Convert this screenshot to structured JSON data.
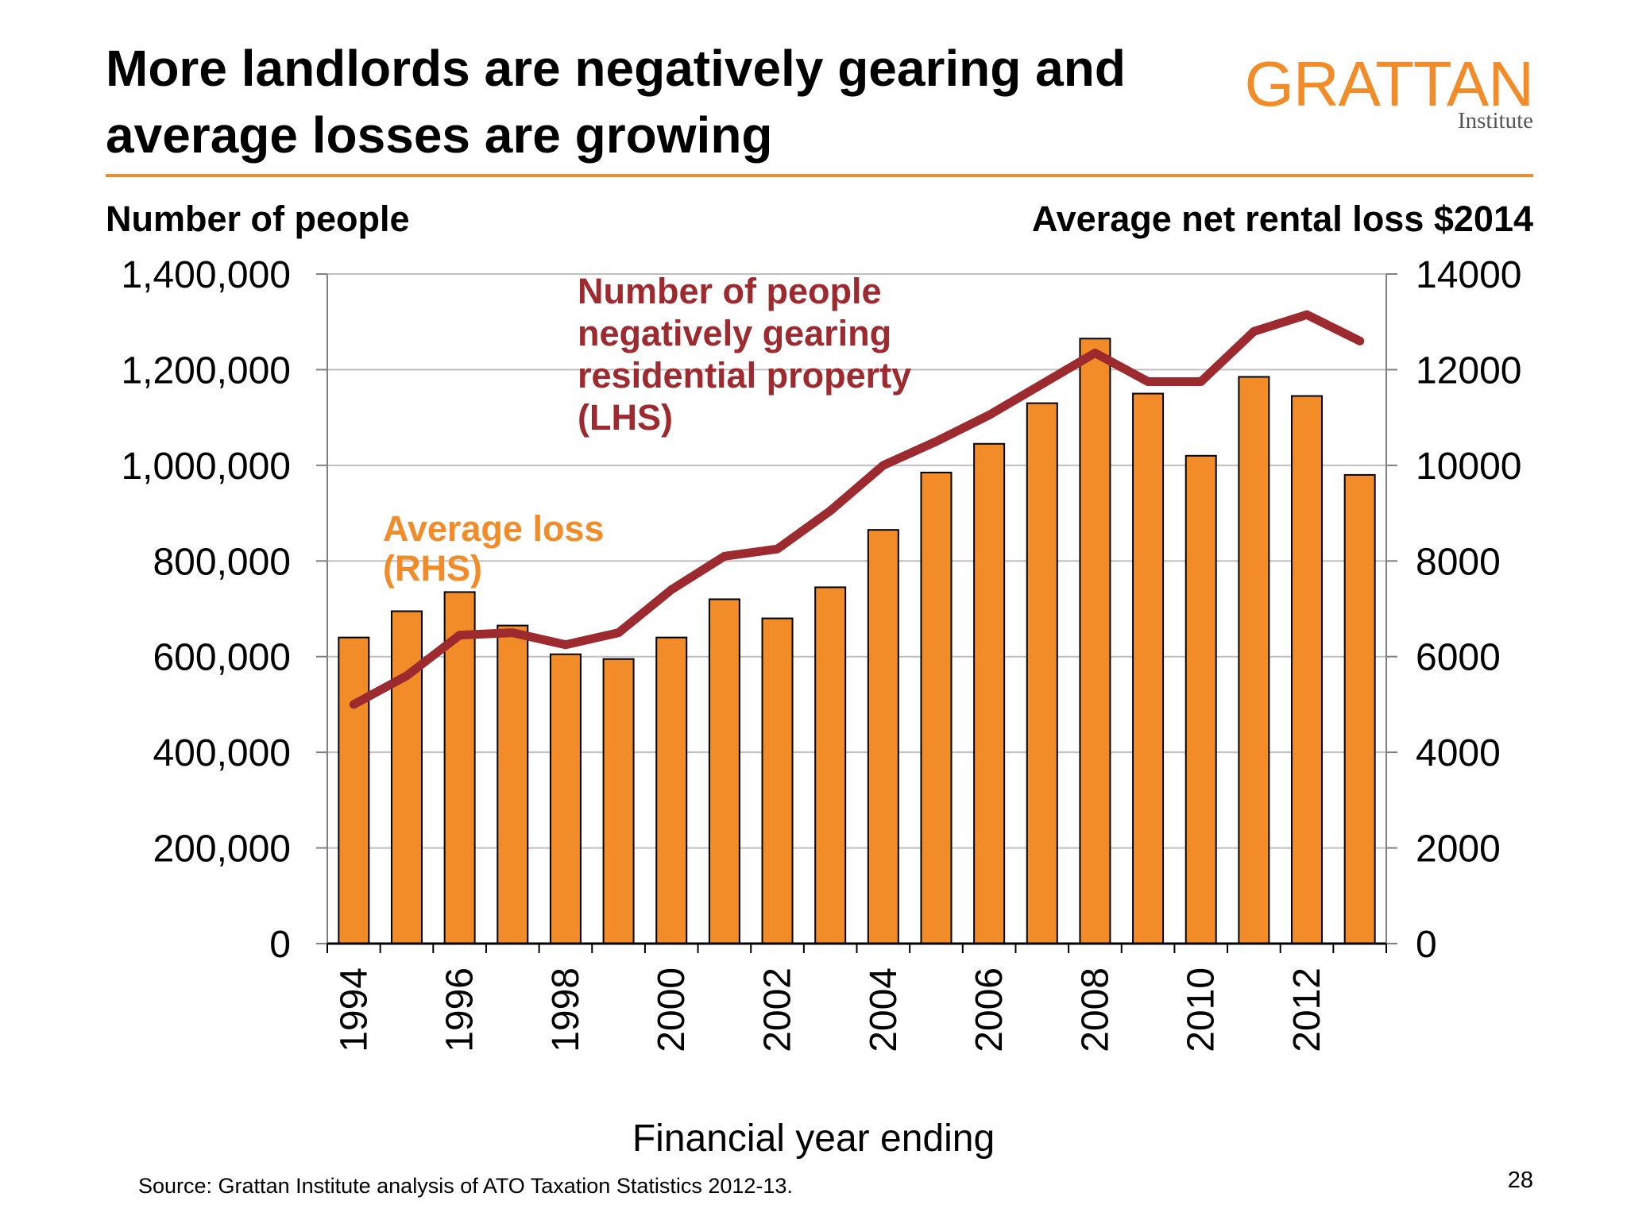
{
  "slide": {
    "title": "More landlords are negatively gearing and average losses are growing",
    "logo_name": "GRATTAN",
    "logo_sub": "Institute",
    "source": "Source: Grattan Institute analysis of ATO Taxation Statistics 2012-13.",
    "page_number": "28"
  },
  "colors": {
    "accent": "#F28C28",
    "bar_fill": "#F28C28",
    "line": "#9C2A2E",
    "rule": "#F28C28",
    "grid": "#BFBFBF"
  },
  "chart_data": {
    "type": "bar",
    "title": "More landlords are negatively gearing and average losses are growing",
    "xlabel": "Financial year ending",
    "ylabel_left": "Number of people",
    "ylabel_right": "Average net rental loss $2014",
    "x": [
      1994,
      1995,
      1996,
      1997,
      1998,
      1999,
      2000,
      2001,
      2002,
      2003,
      2004,
      2005,
      2006,
      2007,
      2008,
      2009,
      2010,
      2011,
      2012,
      2013
    ],
    "x_tick_labels": [
      "1994",
      "1996",
      "1998",
      "2000",
      "2002",
      "2004",
      "2006",
      "2008",
      "2010",
      "2012"
    ],
    "ylim_left": [
      0,
      1400000
    ],
    "ylim_right": [
      0,
      14000
    ],
    "left_ticks": [
      "0",
      "200,000",
      "400,000",
      "600,000",
      "800,000",
      "1,000,000",
      "1,200,000",
      "1,400,000"
    ],
    "right_ticks": [
      "0",
      "2000",
      "4000",
      "6000",
      "8000",
      "10000",
      "12000",
      "14000"
    ],
    "grid": true,
    "series": [
      {
        "name": "Average loss (RHS)",
        "type": "bar",
        "axis": "right",
        "values": [
          6400,
          6950,
          7350,
          6650,
          6050,
          5950,
          6400,
          7200,
          6800,
          7450,
          8650,
          9850,
          10450,
          11300,
          12650,
          11500,
          10200,
          11850,
          11450,
          9800
        ]
      },
      {
        "name": "Number of people negatively gearing residential property (LHS)",
        "type": "line",
        "axis": "left",
        "values": [
          500000,
          560000,
          645000,
          650000,
          625000,
          650000,
          740000,
          810000,
          825000,
          905000,
          1000000,
          1050000,
          1105000,
          1170000,
          1235000,
          1175000,
          1175000,
          1280000,
          1315000,
          1260000
        ]
      }
    ],
    "annotations": {
      "bar_label": [
        "Average loss",
        "(RHS)"
      ],
      "line_label": [
        "Number of people",
        "negatively gearing",
        "residential property",
        "(LHS)"
      ]
    }
  }
}
